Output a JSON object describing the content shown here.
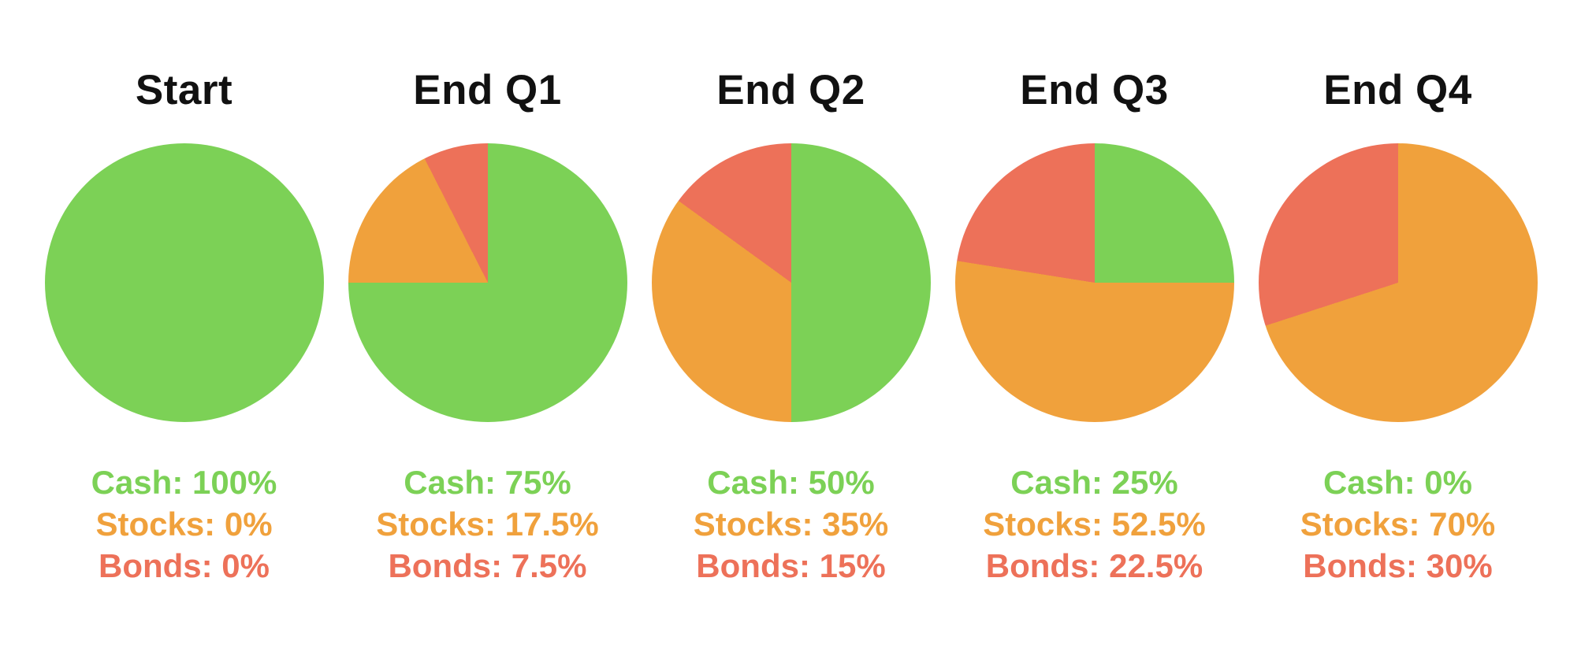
{
  "page": {
    "background": "#FFFFFF",
    "title_color": "#111111"
  },
  "chart_data": {
    "type": "pie",
    "description": "Five pie charts showing portfolio allocation shifting from cash to stocks/bonds over four quarters",
    "series_order": [
      "Cash",
      "Stocks",
      "Bonds"
    ],
    "colors": {
      "Cash": "#7CD156",
      "Stocks": "#F0A13C",
      "Bonds": "#ED7159"
    },
    "start_angle_deg": 0,
    "direction": "clockwise",
    "legend_position": "below-each-pie",
    "pies": [
      {
        "title": "Start",
        "values": {
          "Cash": 100,
          "Stocks": 0,
          "Bonds": 0
        },
        "labels": [
          "Cash: 100%",
          "Stocks: 0%",
          "Bonds: 0%"
        ]
      },
      {
        "title": "End Q1",
        "values": {
          "Cash": 75,
          "Stocks": 17.5,
          "Bonds": 7.5
        },
        "labels": [
          "Cash: 75%",
          "Stocks: 17.5%",
          "Bonds: 7.5%"
        ]
      },
      {
        "title": "End Q2",
        "values": {
          "Cash": 50,
          "Stocks": 35,
          "Bonds": 15
        },
        "labels": [
          "Cash: 50%",
          "Stocks: 35%",
          "Bonds: 15%"
        ]
      },
      {
        "title": "End Q3",
        "values": {
          "Cash": 25,
          "Stocks": 52.5,
          "Bonds": 22.5
        },
        "labels": [
          "Cash: 25%",
          "Stocks: 52.5%",
          "Bonds: 22.5%"
        ]
      },
      {
        "title": "End Q4",
        "values": {
          "Cash": 0,
          "Stocks": 70,
          "Bonds": 30
        },
        "labels": [
          "Cash: 0%",
          "Stocks: 70%",
          "Bonds: 30%"
        ]
      }
    ]
  }
}
